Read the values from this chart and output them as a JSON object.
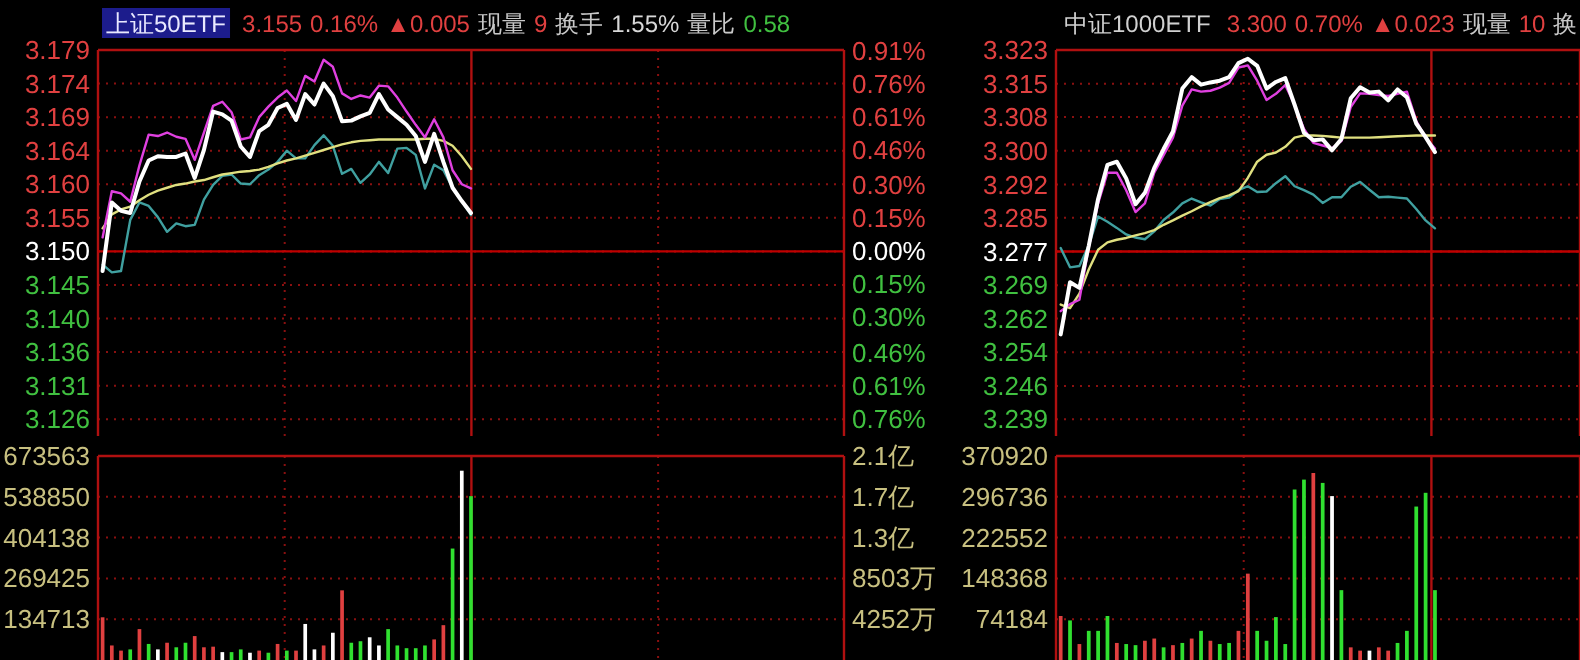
{
  "chart_data": [
    {
      "type": "line",
      "title": "上证50ETF",
      "annotations": [
        "3.155",
        "0.16%",
        "▲0.005",
        "现量",
        "9",
        "换手",
        "1.55%",
        "量比",
        "0.58"
      ],
      "categories": [
        null,
        null,
        null,
        null,
        null,
        null,
        null,
        null,
        null,
        null,
        null,
        null,
        null,
        null,
        null,
        null,
        null,
        null,
        null,
        null,
        null,
        null,
        null,
        null,
        null,
        null,
        null,
        null,
        null,
        null,
        null,
        null,
        null,
        null,
        null,
        null,
        null,
        null,
        null,
        null,
        null,
        null,
        null,
        null,
        null,
        null,
        null,
        null,
        null,
        null,
        null,
        null,
        null,
        null,
        null,
        null,
        null,
        null,
        null,
        null,
        null,
        null,
        null,
        null,
        null,
        null,
        null,
        null,
        null,
        null,
        null,
        null,
        null,
        null,
        null,
        null,
        null,
        null,
        null,
        null,
        null
      ],
      "tick_labels": "y",
      "grid": true,
      "ylim": [
        3.1236,
        3.1788
      ],
      "yticks": [
        {
          "value": 3.1788,
          "label": "3.179"
        },
        {
          "value": 3.174,
          "label": "3.174"
        },
        {
          "value": 3.1692,
          "label": "3.169"
        },
        {
          "value": 3.1644,
          "label": "3.164"
        },
        {
          "value": 3.1596,
          "label": "3.160"
        },
        {
          "value": 3.1548,
          "label": "3.155"
        },
        {
          "value": 3.15,
          "label": "3.150"
        },
        {
          "value": 3.1452,
          "label": "3.145"
        },
        {
          "value": 3.1404,
          "label": "3.140"
        },
        {
          "value": 3.1356,
          "label": "3.136"
        },
        {
          "value": 3.1308,
          "label": "3.131"
        },
        {
          "value": 3.126,
          "label": "3.126"
        }
      ],
      "y2lim": [
        -0.838,
        0.914
      ],
      "y2ticks": [
        {
          "value": 0.91,
          "label": "0.91%"
        },
        {
          "value": 0.76,
          "label": "0.76%"
        },
        {
          "value": 0.61,
          "label": "0.61%"
        },
        {
          "value": 0.46,
          "label": "0.46%"
        },
        {
          "value": 0.3,
          "label": "0.30%"
        },
        {
          "value": 0.15,
          "label": "0.15%"
        },
        {
          "value": 0,
          "label": "0.00%"
        },
        {
          "value": -0.15,
          "label": "0.15%"
        },
        {
          "value": -0.3,
          "label": "0.30%"
        },
        {
          "value": -0.46,
          "label": "0.46%"
        },
        {
          "value": -0.61,
          "label": "0.61%"
        },
        {
          "value": -0.76,
          "label": "0.76%"
        }
      ],
      "ref_lines": [
        {
          "axis": "y",
          "value": 3.15,
          "color": "#c00000"
        }
      ],
      "series": [
        {
          "color": "#40a0a0",
          "values": [
            3.1481,
            3.147,
            3.1472,
            3.1545,
            3.157,
            3.1565,
            3.1549,
            3.1528,
            3.154,
            3.1536,
            3.1538,
            3.1574,
            3.1595,
            3.1608,
            3.161,
            3.1597,
            3.1596,
            3.1609,
            3.1617,
            3.1628,
            3.1644,
            3.1633,
            3.1633,
            3.1652,
            3.1666,
            3.1651,
            3.1611,
            3.1618,
            3.1598,
            3.161,
            3.1628,
            3.1612,
            3.1647,
            3.1648,
            3.1638,
            3.159,
            3.1624,
            3.1616,
            3.1591,
            3.1572,
            3.1552,
            null,
            null,
            null,
            null,
            null,
            null,
            null,
            null,
            null,
            null,
            null,
            null,
            null,
            null,
            null,
            null,
            null,
            null,
            null,
            null,
            null,
            null,
            null,
            null,
            null,
            null,
            null,
            null,
            null,
            null,
            null,
            null,
            null,
            null,
            null,
            null,
            null,
            null,
            null,
            null
          ]
        },
        {
          "color": "#e0e080",
          "values": [
            3.1533,
            3.1553,
            3.156,
            3.1564,
            3.1573,
            3.1581,
            3.1587,
            3.1591,
            3.1595,
            3.1597,
            3.16,
            3.1602,
            3.1606,
            3.161,
            3.1612,
            3.1614,
            3.1615,
            3.1617,
            3.1621,
            3.1626,
            3.163,
            3.1633,
            3.1637,
            3.1641,
            3.1645,
            3.1649,
            3.1653,
            3.1656,
            3.1658,
            3.1659,
            3.166,
            3.166,
            3.166,
            3.166,
            3.166,
            3.1661,
            3.1661,
            3.1658,
            3.1651,
            3.1636,
            3.1618,
            null,
            null,
            null,
            null,
            null,
            null,
            null,
            null,
            null,
            null,
            null,
            null,
            null,
            null,
            null,
            null,
            null,
            null,
            null,
            null,
            null,
            null,
            null,
            null,
            null,
            null,
            null,
            null,
            null,
            null,
            null,
            null,
            null,
            null,
            null,
            null,
            null,
            null,
            null,
            null
          ]
        },
        {
          "color": "#e040e0",
          "values": [
            3.152,
            3.1586,
            3.1583,
            3.1571,
            3.1623,
            3.1667,
            3.1665,
            3.167,
            3.1664,
            3.1661,
            3.1631,
            3.167,
            3.1708,
            3.1714,
            3.1699,
            3.166,
            3.1663,
            3.1692,
            3.1707,
            3.172,
            3.173,
            3.1715,
            3.1751,
            3.1743,
            3.1774,
            3.1764,
            3.1726,
            3.1718,
            3.1723,
            3.172,
            3.1737,
            3.1736,
            3.172,
            3.17,
            3.1681,
            3.1663,
            3.1689,
            3.1663,
            3.1616,
            3.1596,
            3.159,
            null,
            null,
            null,
            null,
            null,
            null,
            null,
            null,
            null,
            null,
            null,
            null,
            null,
            null,
            null,
            null,
            null,
            null,
            null,
            null,
            null,
            null,
            null,
            null,
            null,
            null,
            null,
            null,
            null,
            null,
            null,
            null,
            null,
            null,
            null,
            null,
            null,
            null,
            null,
            null
          ]
        },
        {
          "color": "#ffffff",
          "values": [
            3.1472,
            3.157,
            3.1558,
            3.1555,
            3.16,
            3.163,
            3.1636,
            3.1635,
            3.1635,
            3.164,
            3.1605,
            3.1645,
            3.17,
            3.1696,
            3.1687,
            3.165,
            3.1635,
            3.1672,
            3.1681,
            3.1705,
            3.1711,
            3.1688,
            3.1725,
            3.171,
            3.174,
            3.1722,
            3.1686,
            3.1687,
            3.1693,
            3.1698,
            3.1725,
            3.1703,
            3.1692,
            3.1681,
            3.1665,
            3.1628,
            3.1668,
            3.1628,
            3.1591,
            3.1572,
            3.1555,
            null,
            null,
            null,
            null,
            null,
            null,
            null,
            null,
            null,
            null,
            null,
            null,
            null,
            null,
            null,
            null,
            null,
            null,
            null,
            null,
            null,
            null,
            null,
            null,
            null,
            null,
            null,
            null,
            null,
            null,
            null,
            null,
            null,
            null,
            null,
            null,
            null,
            null,
            null,
            null
          ]
        }
      ]
    },
    {
      "type": "bar",
      "categories": [
        null,
        null,
        null,
        null,
        null,
        null,
        null,
        null,
        null,
        null,
        null,
        null,
        null,
        null,
        null,
        null,
        null,
        null,
        null,
        null,
        null,
        null,
        null,
        null,
        null,
        null,
        null,
        null,
        null,
        null,
        null,
        null,
        null,
        null,
        null,
        null,
        null,
        null,
        null,
        null,
        null,
        null,
        null,
        null,
        null,
        null,
        null,
        null,
        null,
        null,
        null,
        null,
        null,
        null,
        null,
        null,
        null,
        null,
        null,
        null,
        null,
        null,
        null,
        null,
        null,
        null,
        null,
        null,
        null,
        null,
        null,
        null,
        null,
        null,
        null,
        null,
        null,
        null,
        null,
        null,
        null
      ],
      "tick_labels": "y",
      "grid": true,
      "ylim": [
        0,
        673563
      ],
      "yticks": [
        134713,
        269425,
        404138,
        538850,
        673563
      ],
      "annotations": [
        "4252万",
        "8503万",
        "1.3亿",
        "1.7亿",
        "2.1亿"
      ],
      "series": [
        {
          "values": [
            141000,
            48000,
            31000,
            35000,
            102000,
            53000,
            35000,
            57000,
            42000,
            57000,
            79000,
            42000,
            44000,
            26000,
            26000,
            35000,
            24000,
            31000,
            24000,
            53000,
            31000,
            31000,
            119000,
            35000,
            48000,
            90000,
            230000,
            57000,
            62000,
            75000,
            48000,
            102000,
            48000,
            39000,
            39000,
            48000,
            68000,
            115000,
            368000,
            625000,
            541000,
            null,
            null,
            null,
            null,
            null,
            null,
            null,
            null,
            null,
            null,
            null,
            null,
            null,
            null,
            null,
            null,
            null,
            null,
            null,
            null,
            null,
            null,
            null,
            null,
            null,
            null,
            null,
            null,
            null,
            null,
            null,
            null,
            null,
            null,
            null,
            null,
            null,
            null,
            null,
            null
          ],
          "colors": [
            "#e04040",
            "#e04040",
            "#e04040",
            "#30e030",
            "#e04040",
            "#30e030",
            "#ffffff",
            "#e04040",
            "#30e030",
            "#30e030",
            "#e04040",
            "#e04040",
            "#e04040",
            "#ffffff",
            "#30e030",
            "#30e030",
            "#ffffff",
            "#e04040",
            "#30e030",
            "#e04040",
            "#30e030",
            "#e04040",
            "#ffffff",
            "#ffffff",
            "#e04040",
            "#ffffff",
            "#e04040",
            "#30e030",
            "#30e030",
            "#ffffff",
            "#ffffff",
            "#30e030",
            "#30e030",
            "#30e030",
            "#30e030",
            "#30e030",
            "#e04040",
            "#e04040",
            "#30e030",
            "#ffffff",
            "#30e030",
            null,
            null,
            null,
            null,
            null,
            null,
            null,
            null,
            null,
            null,
            null,
            null,
            null,
            null,
            null,
            null,
            null,
            null,
            null,
            null,
            null,
            null,
            null,
            null,
            null,
            null,
            null,
            null,
            null,
            null,
            null,
            null,
            null,
            null,
            null,
            null,
            null,
            null,
            null,
            null
          ]
        }
      ]
    },
    {
      "type": "line",
      "title": "中证1000ETF",
      "annotations": [
        "3.300",
        "0.70%",
        "▲0.023",
        "现量",
        "10",
        "换"
      ],
      "categories": [
        null,
        null,
        null,
        null,
        null,
        null,
        null,
        null,
        null,
        null,
        null,
        null,
        null,
        null,
        null,
        null,
        null,
        null,
        null,
        null,
        null,
        null,
        null,
        null,
        null,
        null,
        null,
        null,
        null,
        null,
        null,
        null,
        null,
        null,
        null,
        null,
        null,
        null,
        null,
        null,
        null,
        null,
        null,
        null,
        null,
        null,
        null,
        null,
        null,
        null,
        null,
        null,
        null,
        null,
        null,
        null
      ],
      "tick_labels": "y",
      "grid": true,
      "ylim": [
        3.2349,
        3.323
      ],
      "yticks": [
        {
          "value": 3.323,
          "label": "3.323"
        },
        {
          "value": 3.3153,
          "label": "3.315"
        },
        {
          "value": 3.3077,
          "label": "3.308"
        },
        {
          "value": 3.3,
          "label": "3.300"
        },
        {
          "value": 3.2923,
          "label": "3.292"
        },
        {
          "value": 3.2847,
          "label": "3.285"
        },
        {
          "value": 3.277,
          "label": "3.277"
        },
        {
          "value": 3.2693,
          "label": "3.269"
        },
        {
          "value": 3.2617,
          "label": "3.262"
        },
        {
          "value": 3.254,
          "label": "3.254"
        },
        {
          "value": 3.2463,
          "label": "3.246"
        },
        {
          "value": 3.2387,
          "label": "3.239"
        }
      ],
      "ref_lines": [
        {
          "axis": "y",
          "value": 3.277,
          "color": "#c00000"
        }
      ],
      "series": [
        {
          "color": "#40a0a0",
          "values": [
            3.2778,
            3.2734,
            3.2737,
            3.2784,
            3.285,
            3.2838,
            3.2824,
            3.2809,
            3.2802,
            3.2798,
            3.2816,
            3.2842,
            3.2859,
            3.288,
            3.2891,
            3.2882,
            3.2875,
            3.289,
            3.2893,
            3.291,
            3.2919,
            3.2906,
            3.2907,
            3.2926,
            3.2942,
            3.2919,
            3.291,
            3.29,
            3.2881,
            3.2894,
            3.2894,
            3.2918,
            3.2929,
            3.2911,
            3.2894,
            3.2895,
            3.2893,
            3.2891,
            3.2867,
            3.2841,
            3.2823,
            null,
            null,
            null,
            null,
            null,
            null,
            null,
            null,
            null,
            null,
            null,
            null,
            null,
            null,
            null
          ]
        },
        {
          "color": "#e0e080",
          "values": [
            3.2649,
            3.2641,
            3.2674,
            3.2729,
            3.2774,
            3.2791,
            3.2797,
            3.2801,
            3.2807,
            3.2812,
            3.2819,
            3.2831,
            3.2841,
            3.2852,
            3.2862,
            3.2873,
            3.2883,
            3.2892,
            3.2898,
            3.2908,
            3.2938,
            3.2975,
            3.2991,
            3.2996,
            3.3009,
            3.303,
            3.3035,
            3.3035,
            3.3034,
            3.3032,
            3.303,
            3.303,
            3.303,
            3.303,
            3.3031,
            3.3032,
            3.3033,
            3.3034,
            3.3035,
            3.3035,
            3.3035,
            null,
            null,
            null,
            null,
            null,
            null,
            null,
            null,
            null,
            null,
            null,
            null,
            null,
            null,
            null
          ]
        },
        {
          "color": "#e040e0",
          "values": [
            3.2634,
            3.265,
            3.266,
            3.278,
            3.288,
            3.295,
            3.295,
            3.291,
            3.286,
            3.288,
            3.295,
            3.299,
            3.303,
            3.3103,
            3.314,
            3.3135,
            3.3137,
            3.3144,
            3.3155,
            3.319,
            3.3195,
            3.316,
            3.3116,
            3.313,
            3.315,
            3.3105,
            3.305,
            3.3018,
            3.3012,
            3.3006,
            3.3022,
            3.31,
            3.3131,
            3.313,
            3.3127,
            3.3125,
            3.313,
            3.3135,
            3.3068,
            3.303,
            3.3005,
            null,
            null,
            null,
            null,
            null,
            null,
            null,
            null,
            null,
            null,
            null,
            null,
            null,
            null,
            null
          ]
        },
        {
          "color": "#ffffff",
          "values": [
            3.2581,
            3.27,
            3.2687,
            3.2783,
            3.289,
            3.2968,
            3.2975,
            3.2937,
            3.2878,
            3.2904,
            3.2961,
            3.3004,
            3.3044,
            3.3142,
            3.3168,
            3.3151,
            3.3156,
            3.316,
            3.3168,
            3.32,
            3.321,
            3.3194,
            3.3142,
            3.3157,
            3.3166,
            3.3105,
            3.3041,
            3.3024,
            3.3026,
            3.3001,
            3.3027,
            3.312,
            3.3145,
            3.3133,
            3.3135,
            3.3115,
            3.314,
            3.3122,
            3.3062,
            3.3031,
            3.2997,
            null,
            null,
            null,
            null,
            null,
            null,
            null,
            null,
            null,
            null,
            null,
            null,
            null,
            null,
            null
          ]
        }
      ]
    },
    {
      "type": "bar",
      "categories": [
        null,
        null,
        null,
        null,
        null,
        null,
        null,
        null,
        null,
        null,
        null,
        null,
        null,
        null,
        null,
        null,
        null,
        null,
        null,
        null,
        null,
        null,
        null,
        null,
        null,
        null,
        null,
        null,
        null,
        null,
        null,
        null,
        null,
        null,
        null,
        null,
        null,
        null,
        null,
        null,
        null,
        null,
        null,
        null,
        null,
        null,
        null,
        null,
        null,
        null,
        null,
        null,
        null,
        null,
        null,
        null
      ],
      "tick_labels": "y",
      "grid": true,
      "ylim": [
        0,
        370920
      ],
      "yticks": [
        74184,
        148368,
        222552,
        296736,
        370920
      ],
      "series": [
        {
          "values": [
            80000,
            72000,
            29000,
            53000,
            53000,
            80000,
            31000,
            29000,
            27000,
            35000,
            39000,
            23000,
            27000,
            31000,
            39000,
            53000,
            35000,
            29000,
            31000,
            53000,
            157000,
            53000,
            35000,
            78000,
            29000,
            310000,
            328000,
            340000,
            322000,
            298000,
            127000,
            23000,
            17000,
            17000,
            23000,
            17000,
            31000,
            53000,
            279000,
            304000,
            127000,
            null,
            null,
            null,
            null,
            null,
            null,
            null,
            null,
            null,
            null,
            null,
            null,
            null,
            null,
            null
          ],
          "colors": [
            "#e04040",
            "#30e030",
            "#e04040",
            "#30e030",
            "#30e030",
            "#30e030",
            "#e04040",
            "#30e030",
            "#30e030",
            "#e04040",
            "#e04040",
            "#30e030",
            "#e04040",
            "#30e030",
            "#e04040",
            "#30e030",
            "#e04040",
            "#30e030",
            "#30e030",
            "#e04040",
            "#e04040",
            "#30e030",
            "#30e030",
            "#30e030",
            "#30e030",
            "#30e030",
            "#30e030",
            "#e04040",
            "#30e030",
            "#ffffff",
            "#30e030",
            "#e04040",
            "#e04040",
            "#ffffff",
            "#e04040",
            "#e04040",
            "#30e030",
            "#30e030",
            "#30e030",
            "#30e030",
            "#30e030",
            null,
            null,
            null,
            null,
            null,
            null,
            null,
            null,
            null,
            null,
            null,
            null,
            null,
            null,
            null
          ]
        }
      ]
    }
  ]
}
